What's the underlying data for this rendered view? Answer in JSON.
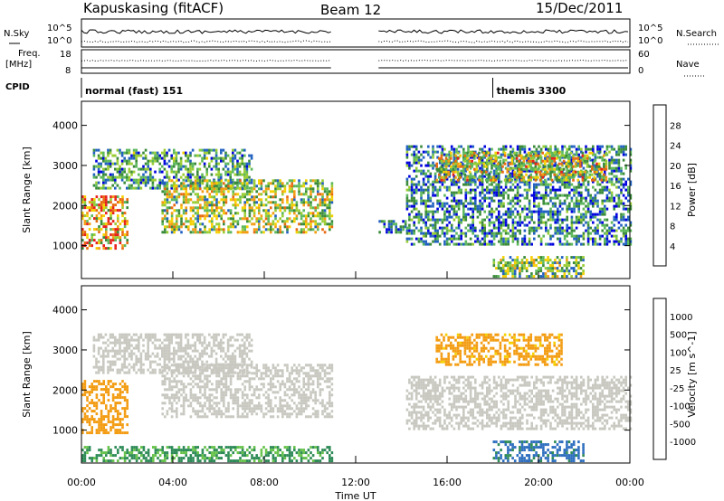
{
  "header": {
    "station": "Kapuskasing (fitACF)",
    "beam": "Beam 12",
    "date": "15/Dec/2011"
  },
  "status_panels": {
    "nsky_label": "N.Sky",
    "nsearch_label": "N.Search",
    "nsky_ticks": [
      "10^5",
      "10^0"
    ],
    "nsearch_ticks": [
      "10^5",
      "10^0"
    ],
    "freq_label_1": "Freq.",
    "freq_label_2": "[MHz]",
    "freq_ticks": [
      "18",
      "8"
    ],
    "nave_label": "Nave",
    "nave_ticks": [
      "60",
      "0"
    ],
    "cpid_label": "CPID",
    "cpid_segments": [
      {
        "label": "normal (fast) 151",
        "start_h": 0,
        "end_h": 18.0
      },
      {
        "label": "themis 3300",
        "start_h": 18.0,
        "end_h": 24
      }
    ]
  },
  "xaxis": {
    "label": "Time UT",
    "ticks": [
      "00:00",
      "04:00",
      "08:00",
      "12:00",
      "16:00",
      "20:00",
      "00:00"
    ],
    "range_h": [
      0,
      24
    ],
    "data_gap_h": [
      11.0,
      13.0
    ]
  },
  "chart_data": [
    {
      "type": "heatmap",
      "name": "power",
      "xlabel": "Time UT",
      "ylabel": "Slant Range [km]",
      "yticks": [
        "1000",
        "2000",
        "3000",
        "4000"
      ],
      "ylim": [
        180,
        4600
      ],
      "colorbar_label": "Power [dB]",
      "colorbar_ticks": [
        "28",
        "24",
        "20",
        "16",
        "12",
        "8",
        "4"
      ],
      "colorbar_range": [
        0,
        32
      ],
      "colors": [
        "#0000e0",
        "#2060c0",
        "#3a8a3a",
        "#5cb85c",
        "#9acd32",
        "#f5d000",
        "#f39c12",
        "#e86a10",
        "#e8201b"
      ],
      "echo_regions": [
        {
          "t0": 0.0,
          "t1": 2.0,
          "r0": 900,
          "r1": 2200,
          "level": 22
        },
        {
          "t0": 0.5,
          "t1": 7.5,
          "r0": 2400,
          "r1": 3400,
          "level": 10
        },
        {
          "t0": 3.5,
          "t1": 11.0,
          "r0": 1300,
          "r1": 2600,
          "level": 16
        },
        {
          "t0": 13.0,
          "t1": 14.2,
          "r0": 1300,
          "r1": 1600,
          "level": 6
        },
        {
          "t0": 14.2,
          "t1": 24.0,
          "r0": 1000,
          "r1": 3500,
          "level": 8
        },
        {
          "t0": 15.5,
          "t1": 23.0,
          "r0": 2600,
          "r1": 3300,
          "level": 18
        },
        {
          "t0": 18.0,
          "t1": 22.0,
          "r0": 200,
          "r1": 700,
          "level": 14
        }
      ]
    },
    {
      "type": "heatmap",
      "name": "velocity",
      "xlabel": "Time UT",
      "ylabel": "Slant Range [km]",
      "yticks": [
        "1000",
        "2000",
        "3000",
        "4000"
      ],
      "ylim": [
        180,
        4600
      ],
      "colorbar_label": "Velocity [m s^-1]",
      "colorbar_ticks": [
        "1000",
        "500",
        "100",
        "25",
        "-25",
        "-100",
        "-500",
        "-1000"
      ],
      "colors": [
        "#1f3fbf",
        "#2f6fbf",
        "#2e8b57",
        "#66c24a",
        "#c8c8c0",
        "#f5d000",
        "#f39c12",
        "#e86a10",
        "#e8201b"
      ],
      "echo_regions": [
        {
          "t0": 0.0,
          "t1": 2.0,
          "r0": 900,
          "r1": 2200,
          "level": -200
        },
        {
          "t0": 0.5,
          "t1": 7.5,
          "r0": 2400,
          "r1": 3400,
          "level": 0
        },
        {
          "t0": 3.5,
          "t1": 11.0,
          "r0": 1300,
          "r1": 2600,
          "level": 0
        },
        {
          "t0": 0.0,
          "t1": 11.0,
          "r0": 200,
          "r1": 600,
          "level": 120
        },
        {
          "t0": 14.2,
          "t1": 24.0,
          "r0": 1000,
          "r1": 2300,
          "level": 0
        },
        {
          "t0": 15.5,
          "t1": 21.0,
          "r0": 2600,
          "r1": 3400,
          "level": -150
        },
        {
          "t0": 18.0,
          "t1": 22.0,
          "r0": 200,
          "r1": 700,
          "level": 600
        }
      ]
    }
  ]
}
